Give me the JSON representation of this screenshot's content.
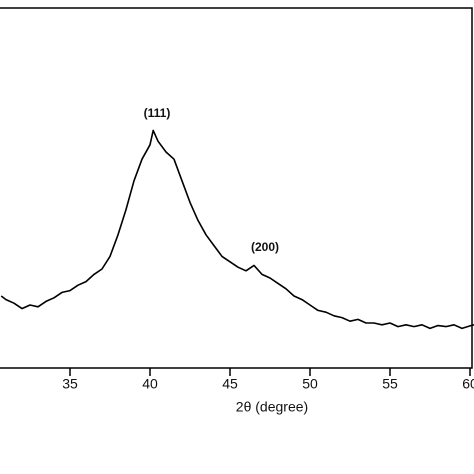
{
  "chart_data": {
    "type": "line",
    "x_label": "2θ (degree)",
    "x": [
      30.7,
      31,
      31.5,
      32,
      32.5,
      33,
      33.5,
      34,
      34.5,
      35,
      35.5,
      36,
      36.5,
      37,
      37.5,
      38,
      38.5,
      39,
      39.5,
      40,
      40.2,
      40.5,
      41,
      41.5,
      42,
      42.5,
      43,
      43.5,
      44,
      44.5,
      45,
      45.5,
      46,
      46.5,
      47,
      47.5,
      48,
      48.5,
      49,
      49.5,
      50,
      50.5,
      51,
      51.5,
      52,
      52.5,
      53,
      53.5,
      54,
      54.5,
      55,
      55.5,
      56,
      56.5,
      57,
      57.5,
      58,
      58.5,
      59,
      59.5,
      60,
      60.25
    ],
    "series": [
      {
        "color": "#000000",
        "values": [
          20,
          19,
          18,
          16.5,
          17.5,
          17,
          18.5,
          19.5,
          21,
          21.5,
          23,
          24,
          26,
          27.5,
          31,
          37,
          44,
          52,
          58,
          62,
          66,
          63,
          60,
          58,
          52,
          46,
          41,
          37,
          34,
          31,
          29.5,
          28,
          27,
          28.5,
          26,
          25,
          23.5,
          22,
          20,
          19,
          17.5,
          16,
          15.5,
          14.5,
          14,
          13,
          13.5,
          12.5,
          12.5,
          12,
          12.5,
          11.5,
          12,
          11.5,
          12,
          11,
          11.8,
          11.5,
          12,
          11,
          11.7,
          12
        ]
      }
    ],
    "xlim": [
      30.625,
      60.25
    ],
    "xticks": [
      35,
      40,
      45,
      50,
      55,
      60
    ],
    "ylim": [
      0,
      100
    ],
    "annotations": [
      {
        "text": "(111)"
      },
      {
        "text": "(200)"
      }
    ]
  }
}
